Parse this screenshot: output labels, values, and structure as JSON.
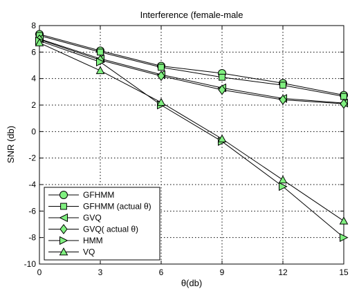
{
  "chart_data": {
    "type": "line",
    "title": "Interference (female-male",
    "xlabel": "θ(db)",
    "ylabel": "SNR (db)",
    "x": [
      0,
      3,
      6,
      9,
      12,
      15
    ],
    "xlim": [
      0,
      15
    ],
    "ylim": [
      -10,
      8
    ],
    "xticks": [
      "0",
      "3",
      "6",
      "9",
      "12",
      "15"
    ],
    "yticks": [
      "8",
      "6",
      "4",
      "2",
      "0",
      "-2",
      "-4",
      "-6",
      "-8",
      "-10"
    ],
    "grid": true,
    "legend_position": "bottom-left",
    "marker_color": "#80f080",
    "line_color": "#000000",
    "series": [
      {
        "name": "GFHMM",
        "marker": "circle",
        "values": [
          7.35,
          6.1,
          4.95,
          4.4,
          3.65,
          2.75
        ]
      },
      {
        "name": "GFHMM (actual θ)",
        "marker": "square",
        "values": [
          7.25,
          6.0,
          4.85,
          4.1,
          3.5,
          2.65
        ]
      },
      {
        "name": "GVQ",
        "marker": "triangle-left",
        "values": [
          7.0,
          5.5,
          4.3,
          3.3,
          2.5,
          2.15
        ]
      },
      {
        "name": "GVQ( actual θ)",
        "marker": "diamond",
        "values": [
          6.95,
          5.4,
          4.2,
          3.15,
          2.4,
          2.1
        ]
      },
      {
        "name": "HMM",
        "marker": "triangle-right",
        "values": [
          6.85,
          5.25,
          2.0,
          -0.75,
          -4.15,
          -8.0
        ]
      },
      {
        "name": "VQ",
        "marker": "triangle-up",
        "values": [
          6.7,
          4.6,
          2.2,
          -0.55,
          -3.65,
          -6.75
        ]
      }
    ]
  }
}
